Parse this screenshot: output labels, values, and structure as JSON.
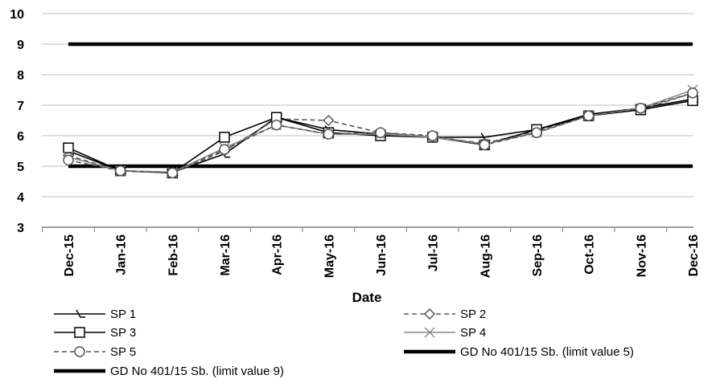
{
  "chart_data": {
    "type": "line",
    "xlabel": "Date",
    "ylabel": "",
    "ylim": [
      3,
      10
    ],
    "yticks": [
      3,
      4,
      5,
      6,
      7,
      8,
      9,
      10
    ],
    "categories": [
      "Dec-15",
      "Jan-16",
      "Feb-16",
      "Mar-16",
      "Apr-16",
      "May-16",
      "Jun-16",
      "Jul-16",
      "Aug-16",
      "Sep-16",
      "Oct-16",
      "Nov-16",
      "Dec-16"
    ],
    "grid": "horizontal",
    "legend_position": "bottom",
    "series": [
      {
        "name": "SP 1",
        "values": [
          5.5,
          4.85,
          4.8,
          5.4,
          6.6,
          6.2,
          6.05,
          5.95,
          5.95,
          6.2,
          6.7,
          6.9,
          7.2
        ],
        "color": "#000000",
        "dash": "solid",
        "marker": "tick"
      },
      {
        "name": "SP 2",
        "values": [
          5.35,
          4.85,
          4.78,
          5.5,
          6.55,
          6.5,
          6.1,
          5.95,
          5.75,
          6.15,
          6.65,
          6.85,
          7.4
        ],
        "color": "#555555",
        "dash": "dashed",
        "marker": "diamond"
      },
      {
        "name": "SP 3",
        "values": [
          5.6,
          4.85,
          4.78,
          5.95,
          6.6,
          6.1,
          6.0,
          5.95,
          5.7,
          6.2,
          6.65,
          6.85,
          7.15
        ],
        "color": "#000000",
        "dash": "solid",
        "marker": "square"
      },
      {
        "name": "SP 4",
        "values": [
          5.3,
          4.85,
          4.8,
          5.6,
          6.35,
          6.05,
          6.05,
          5.95,
          5.72,
          6.1,
          6.65,
          6.9,
          7.5
        ],
        "color": "#888888",
        "dash": "solid",
        "marker": "x"
      },
      {
        "name": "SP 5",
        "values": [
          5.2,
          4.85,
          4.78,
          5.55,
          6.35,
          6.05,
          6.1,
          6.0,
          5.7,
          6.1,
          6.65,
          6.9,
          7.4
        ],
        "color": "#555555",
        "dash": "dashed",
        "marker": "circle"
      },
      {
        "name": "GD No 401/15 Sb. (limit value 5)",
        "values": [
          5,
          5,
          5,
          5,
          5,
          5,
          5,
          5,
          5,
          5,
          5,
          5,
          5
        ],
        "color": "#000000",
        "dash": "solid",
        "marker": "none",
        "thick": true
      },
      {
        "name": "GD No 401/15 Sb. (limit value 9)",
        "values": [
          9,
          9,
          9,
          9,
          9,
          9,
          9,
          9,
          9,
          9,
          9,
          9,
          9
        ],
        "color": "#000000",
        "dash": "solid",
        "marker": "none",
        "thick": true
      }
    ]
  }
}
